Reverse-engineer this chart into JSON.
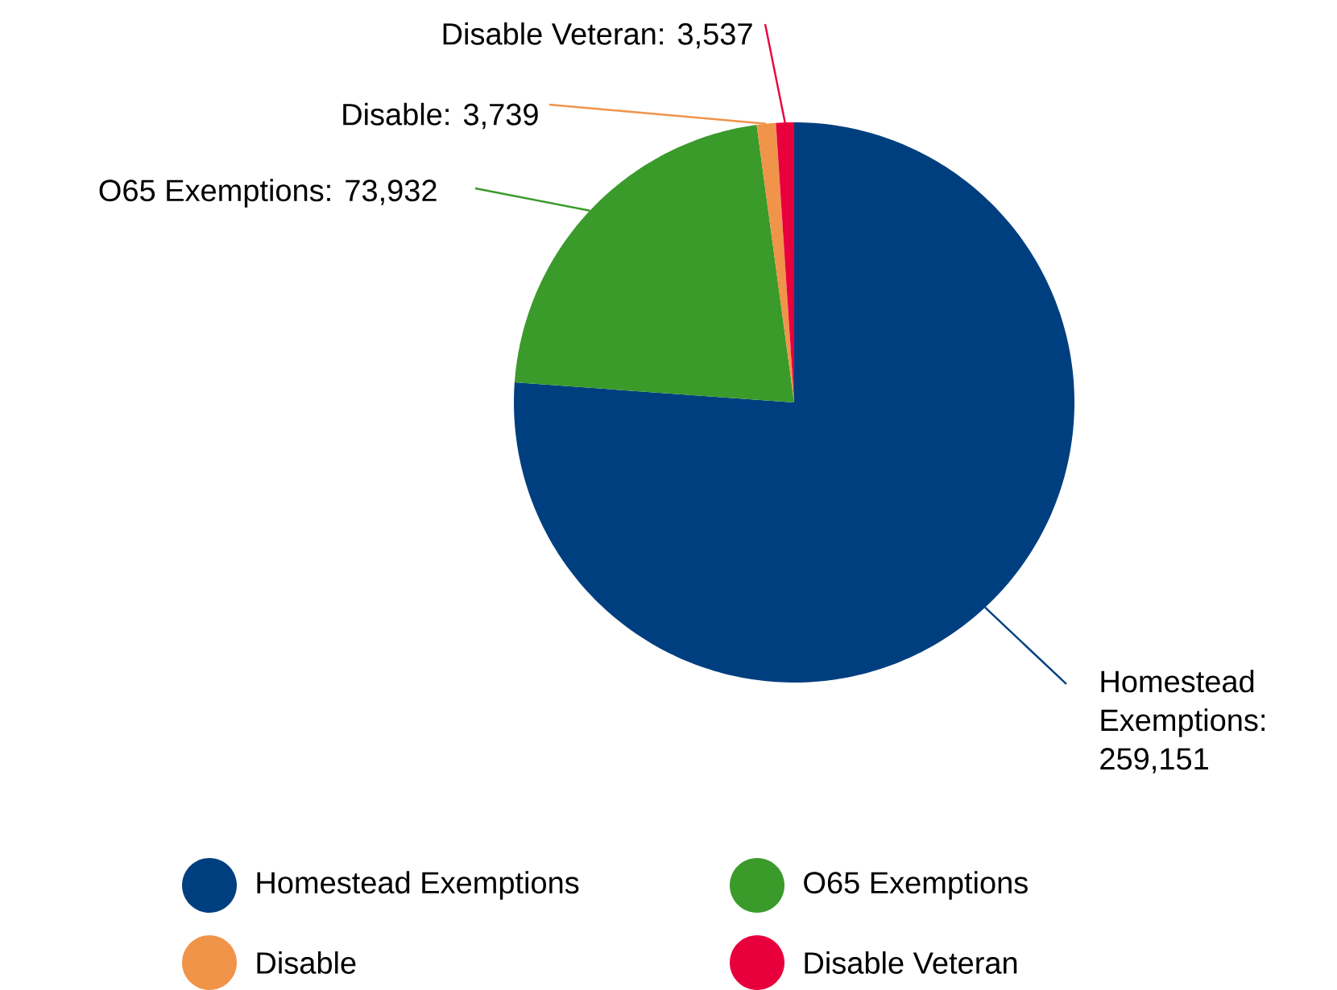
{
  "chart_data": {
    "type": "pie",
    "categories": [
      "Homestead Exemptions",
      "O65 Exemptions",
      "Disable",
      "Disable Veteran"
    ],
    "values": [
      259151,
      73932,
      3739,
      3537
    ],
    "value_labels": [
      "Homestead Exemptions: 259,151",
      "O65 Exemptions: 73,932",
      "Disable: 3,739",
      "Disable Veteran: 3,537"
    ],
    "colors": [
      "#003f7f",
      "#3a9a2a",
      "#f0944a",
      "#e8003d"
    ],
    "legend": "bottom"
  }
}
